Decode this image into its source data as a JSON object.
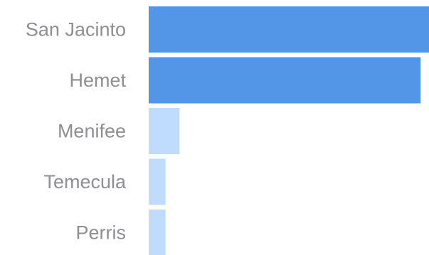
{
  "chart_data": {
    "type": "bar",
    "orientation": "horizontal",
    "categories": [
      "San Jacinto",
      "Hemet",
      "Menifee",
      "Temecula",
      "Perris"
    ],
    "values": [
      100,
      97,
      11,
      6,
      6
    ],
    "title": "",
    "xlabel": "",
    "ylabel": "",
    "xlim": [
      0,
      100
    ],
    "grid": false,
    "legend": "none",
    "colors": {
      "highlight": "#5396e8",
      "normal": "#bfdbfd",
      "label": "#8e8e93"
    },
    "highlighted": [
      "San Jacinto",
      "Hemet"
    ]
  }
}
